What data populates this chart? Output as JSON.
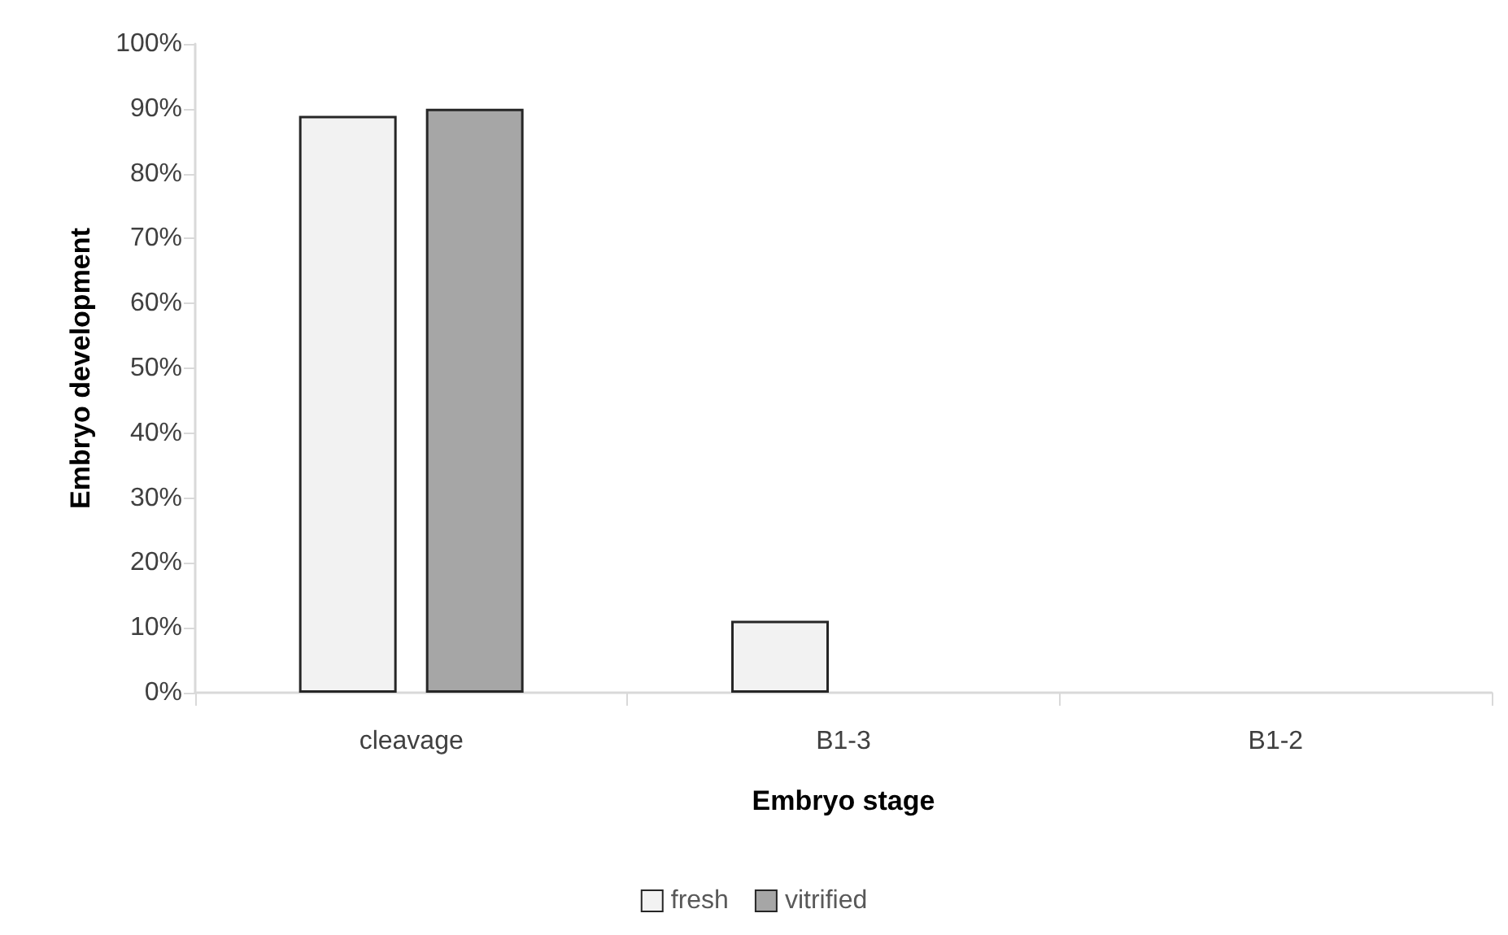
{
  "chart_data": {
    "type": "bar",
    "xlabel": "Embryo stage",
    "ylabel": "Embryo development",
    "categories": [
      "cleavage",
      "B1-3",
      "B1-2"
    ],
    "series": [
      {
        "name": "fresh",
        "color": "#f2f2f2",
        "values": [
          88.9,
          11.1,
          0
        ]
      },
      {
        "name": "vitrified",
        "color": "#a6a6a6",
        "values": [
          90,
          0,
          0
        ]
      }
    ],
    "ylim": [
      0,
      100
    ],
    "yticks": [
      {
        "value": 0,
        "label": "0%"
      },
      {
        "value": 10,
        "label": "10%"
      },
      {
        "value": 20,
        "label": "20%"
      },
      {
        "value": 30,
        "label": "30%"
      },
      {
        "value": 40,
        "label": "40%"
      },
      {
        "value": 50,
        "label": "50%"
      },
      {
        "value": 60,
        "label": "60%"
      },
      {
        "value": 70,
        "label": "70%"
      },
      {
        "value": 80,
        "label": "80%"
      },
      {
        "value": 90,
        "label": "90%"
      },
      {
        "value": 100,
        "label": "100%"
      }
    ],
    "grid": false,
    "legend": "bottom"
  }
}
